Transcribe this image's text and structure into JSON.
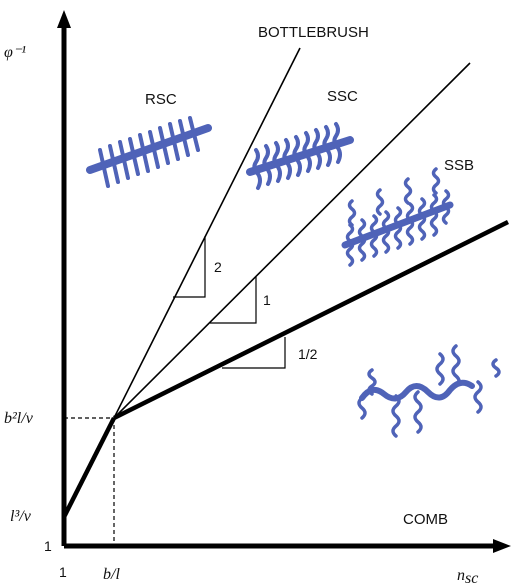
{
  "regions": {
    "bottlebrush": "BOTTLEBRUSH",
    "rsc": "RSC",
    "ssc": "SSC",
    "ssb": "SSB",
    "comb": "COMB"
  },
  "axes": {
    "y_label": "φ⁻¹",
    "x_label_main": "n",
    "x_label_sub": "sc",
    "y_tick_upper": "b²l/ν",
    "y_tick_lower": "l³/ν",
    "y_tick_one": "1",
    "x_tick_one": "1",
    "x_tick_crossover": "b/l"
  },
  "slopes": {
    "steep": "2",
    "middle": "1",
    "shallow": "1/2"
  },
  "colors": {
    "ink": "#000000",
    "polymer": "#4f63b8",
    "polymer_light": "#6f83d4"
  },
  "icons": [
    "rsc-brush-icon",
    "ssc-brush-icon",
    "ssb-brush-icon",
    "comb-polymer-icon"
  ]
}
